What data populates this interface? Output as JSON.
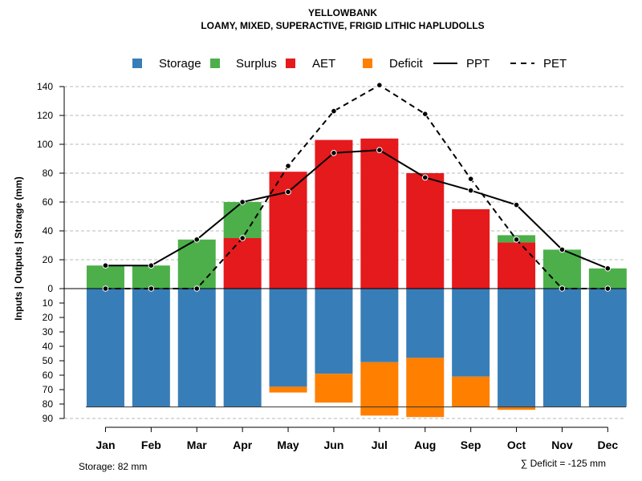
{
  "chart_data": {
    "type": "bar",
    "title": "YELLOWBANK",
    "subtitle": "LOAMY, MIXED, SUPERACTIVE, FRIGID LITHIC HAPLUDOLLS",
    "ylabel": "Inputs | Outputs | Storage     (mm)",
    "ylim_upper": [
      0,
      145
    ],
    "ylim_lower": [
      0,
      90
    ],
    "yticks_upper": [
      "0",
      "20",
      "40",
      "60",
      "80",
      "100",
      "120",
      "140"
    ],
    "yticks_lower": [
      "10",
      "20",
      "30",
      "40",
      "50",
      "60",
      "70",
      "80",
      "90"
    ],
    "categories": [
      "Jan",
      "Feb",
      "Mar",
      "Apr",
      "May",
      "Jun",
      "Jul",
      "Aug",
      "Sep",
      "Oct",
      "Nov",
      "Dec"
    ],
    "series": [
      {
        "name": "Storage",
        "color": "#377eb8",
        "values": [
          82,
          82,
          82,
          82,
          68,
          59,
          51,
          48,
          61,
          82,
          82,
          82
        ]
      },
      {
        "name": "Surplus",
        "color": "#4daf4a",
        "values": [
          16,
          16,
          34,
          25,
          0,
          0,
          0,
          0,
          0,
          5,
          27,
          14
        ]
      },
      {
        "name": "AET",
        "color": "#e41a1c",
        "values": [
          0,
          0,
          0,
          35,
          81,
          103,
          104,
          80,
          55,
          32,
          0,
          0
        ]
      },
      {
        "name": "Deficit",
        "color": "#ff7f00",
        "values": [
          0,
          0,
          0,
          0,
          4,
          20,
          37,
          41,
          21,
          2,
          0,
          0
        ]
      },
      {
        "name": "PPT",
        "color": "#000000",
        "values": [
          16,
          16,
          34,
          60,
          67,
          94,
          96,
          77,
          68,
          58,
          27,
          14
        ]
      },
      {
        "name": "PET",
        "color": "#000000",
        "values": [
          0,
          0,
          0,
          35,
          85,
          123,
          141,
          121,
          76,
          34,
          0,
          0
        ]
      }
    ],
    "legend": [
      "Storage",
      "Surplus",
      "AET",
      "Deficit",
      "PPT",
      "PET"
    ],
    "legend_position": "top",
    "grid": true,
    "storage_note": "Storage: 82 mm",
    "deficit_note": "∑ Deficit = -125 mm"
  }
}
